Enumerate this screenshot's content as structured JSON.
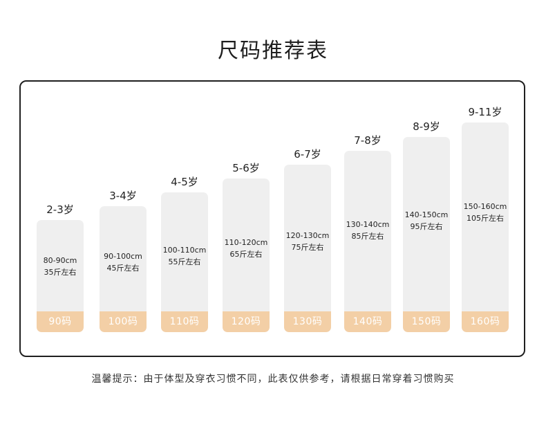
{
  "title": "尺码推荐表",
  "accent_color": "#f3cfa6",
  "columns": [
    {
      "age": "2-3岁",
      "height": "80-90cm",
      "weight": "35斤左右",
      "size": "90码"
    },
    {
      "age": "3-4岁",
      "height": "90-100cm",
      "weight": "45斤左右",
      "size": "100码"
    },
    {
      "age": "4-5岁",
      "height": "100-110cm",
      "weight": "55斤左右",
      "size": "110码"
    },
    {
      "age": "5-6岁",
      "height": "110-120cm",
      "weight": "65斤左右",
      "size": "120码"
    },
    {
      "age": "6-7岁",
      "height": "120-130cm",
      "weight": "75斤左右",
      "size": "130码"
    },
    {
      "age": "7-8岁",
      "height": "130-140cm",
      "weight": "85斤左右",
      "size": "140码"
    },
    {
      "age": "8-9岁",
      "height": "140-150cm",
      "weight": "95斤左右",
      "size": "150码"
    },
    {
      "age": "9-11岁",
      "height": "150-160cm",
      "weight": "105斤左右",
      "size": "160码"
    }
  ],
  "note": "温馨提示：由于体型及穿衣习惯不同，此表仅供参考，请根据日常穿着习惯购买"
}
